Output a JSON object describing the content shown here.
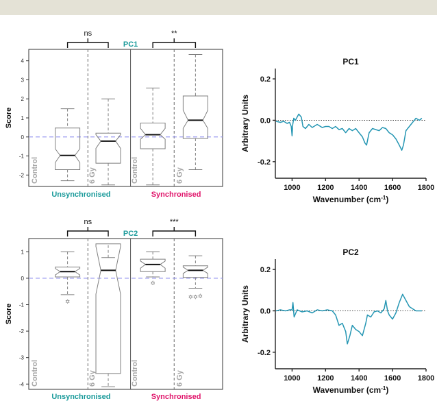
{
  "colors": {
    "teal": "#1a9a9a",
    "magenta": "#e0156b",
    "gray_label": "#a6a6a6",
    "box_edge": "#7f7f7f",
    "line": "#2596b3",
    "dash_zero": "#9a9af0",
    "top_bar": "#e4e2d6"
  },
  "chart_data": [
    {
      "type": "box",
      "name_label": "PC1",
      "ylabel": "Score",
      "ylim": [
        -2.6,
        4.6
      ],
      "yticks": [
        "-2",
        "-1",
        "0",
        "1",
        "2",
        "3",
        "4"
      ],
      "group_labels": [
        "Unsynchronised",
        "Synchronised"
      ],
      "box_labels": [
        "Control",
        "6 Gy",
        "Control",
        "6 Gy"
      ],
      "significance": [
        "ns",
        "**"
      ],
      "boxes": [
        {
          "wlo": -2.3,
          "q1": -1.72,
          "med": -0.97,
          "q3": 0.47,
          "whi": 1.48,
          "nlo": -1.35,
          "nhi": -0.62,
          "outliers": []
        },
        {
          "wlo": -2.52,
          "q1": -1.38,
          "med": -0.22,
          "q3": 0.2,
          "whi": 2.0,
          "nlo": -0.6,
          "nhi": 0.12,
          "outliers": []
        },
        {
          "wlo": -2.52,
          "q1": -0.62,
          "med": 0.12,
          "q3": 0.73,
          "whi": 2.57,
          "nlo": -0.12,
          "nhi": 0.45,
          "outliers": []
        },
        {
          "wlo": -1.72,
          "q1": -0.08,
          "med": 0.88,
          "q3": 2.15,
          "whi": 4.33,
          "nlo": 0.45,
          "nhi": 1.4,
          "outliers": []
        }
      ]
    },
    {
      "type": "box",
      "name_label": "PC2",
      "ylabel": "Score",
      "ylim": [
        -4.2,
        1.5
      ],
      "yticks": [
        "-4",
        "-3",
        "-2",
        "-1",
        "0",
        "1"
      ],
      "group_labels": [
        "Unsynchronised",
        "Synchronised"
      ],
      "box_labels": [
        "Control",
        "6 Gy",
        "Control",
        "6 Gy"
      ],
      "significance": [
        "ns",
        "***"
      ],
      "boxes": [
        {
          "wlo": -0.62,
          "q1": 0.05,
          "med": 0.25,
          "q3": 0.42,
          "whi": 1.0,
          "nlo": 0.12,
          "nhi": 0.37,
          "outliers": [
            -0.88
          ]
        },
        {
          "wlo": -4.1,
          "q1": -3.6,
          "med": 0.3,
          "q3": 1.3,
          "whi": 0.78,
          "nlo": -0.6,
          "nhi": 1.2,
          "outliers": []
        },
        {
          "wlo": 0.05,
          "q1": 0.25,
          "med": 0.52,
          "q3": 0.72,
          "whi": 1.0,
          "nlo": 0.38,
          "nhi": 0.65,
          "outliers": [
            -0.18
          ]
        },
        {
          "wlo": -0.38,
          "q1": 0.03,
          "med": 0.3,
          "q3": 0.47,
          "whi": 0.85,
          "nlo": 0.18,
          "nhi": 0.42,
          "outliers": [
            -0.72,
            -0.72,
            -0.68
          ]
        }
      ]
    },
    {
      "type": "line",
      "title": "PC1",
      "xlabel": "Wavenumber (cm",
      "xlabel_sup": "-1",
      "xlabel_end": ")",
      "ylabel": "Arbitrary Units",
      "xlim": [
        900,
        1800
      ],
      "ylim": [
        -0.28,
        0.25
      ],
      "xticks": [
        "1000",
        "1200",
        "1400",
        "1600",
        "1800"
      ],
      "yticks": [
        "-0.2",
        "0.0",
        "0.2"
      ],
      "x": [
        904,
        930,
        950,
        970,
        985,
        995,
        1000,
        1004,
        1010,
        1020,
        1040,
        1055,
        1065,
        1080,
        1100,
        1120,
        1150,
        1180,
        1200,
        1220,
        1240,
        1260,
        1280,
        1300,
        1320,
        1340,
        1360,
        1380,
        1400,
        1420,
        1435,
        1445,
        1450,
        1460,
        1480,
        1500,
        1520,
        1540,
        1560,
        1580,
        1600,
        1620,
        1640,
        1655,
        1665,
        1680,
        1700,
        1720,
        1740,
        1760,
        1775
      ],
      "y": [
        -0.005,
        -0.01,
        -0.005,
        -0.015,
        -0.01,
        -0.03,
        -0.075,
        -0.02,
        0.01,
        0.0,
        0.03,
        0.015,
        -0.03,
        -0.04,
        -0.02,
        -0.035,
        -0.02,
        -0.035,
        -0.03,
        -0.03,
        -0.04,
        -0.03,
        -0.045,
        -0.04,
        -0.06,
        -0.04,
        -0.05,
        -0.04,
        -0.06,
        -0.08,
        -0.11,
        -0.12,
        -0.1,
        -0.06,
        -0.04,
        -0.045,
        -0.05,
        -0.035,
        -0.04,
        -0.06,
        -0.07,
        -0.09,
        -0.12,
        -0.145,
        -0.12,
        -0.05,
        -0.03,
        -0.01,
        0.01,
        0.0,
        0.01
      ]
    },
    {
      "type": "line",
      "title": "PC2",
      "xlabel": "Wavenumber (cm",
      "xlabel_sup": "-1",
      "xlabel_end": ")",
      "ylabel": "Arbitrary Units",
      "xlim": [
        900,
        1800
      ],
      "ylim": [
        -0.28,
        0.25
      ],
      "xticks": [
        "1000",
        "1200",
        "1400",
        "1600",
        "1800"
      ],
      "yticks": [
        "-0.2",
        "0.0",
        "0.2"
      ],
      "x": [
        904,
        930,
        960,
        985,
        1000,
        1005,
        1012,
        1030,
        1060,
        1090,
        1120,
        1150,
        1180,
        1210,
        1240,
        1260,
        1280,
        1300,
        1320,
        1330,
        1345,
        1360,
        1380,
        1400,
        1420,
        1440,
        1450,
        1470,
        1490,
        1510,
        1530,
        1550,
        1560,
        1570,
        1580,
        1600,
        1620,
        1640,
        1660,
        1680,
        1700,
        1720,
        1740,
        1760,
        1775
      ],
      "y": [
        0.0,
        0.005,
        0.0,
        0.005,
        0.005,
        0.04,
        -0.03,
        0.005,
        -0.005,
        0.0,
        -0.01,
        0.005,
        0.0,
        0.005,
        0.0,
        -0.02,
        -0.07,
        -0.06,
        -0.1,
        -0.16,
        -0.12,
        -0.07,
        -0.09,
        -0.1,
        -0.12,
        -0.06,
        -0.02,
        -0.03,
        -0.005,
        0.0,
        -0.01,
        0.01,
        0.05,
        0.0,
        -0.02,
        -0.04,
        -0.01,
        0.04,
        0.08,
        0.05,
        0.02,
        0.01,
        0.0,
        0.0,
        0.0
      ]
    }
  ]
}
